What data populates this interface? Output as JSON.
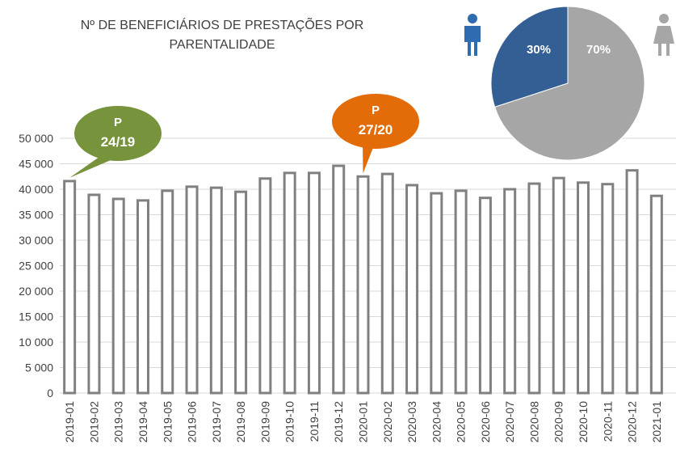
{
  "chart_data": [
    {
      "type": "bar",
      "title": "Nº DE BENEFICIÁRIOS DE PRESTAÇÕES POR PARENTALIDADE",
      "categories": [
        "2019-01",
        "2019-02",
        "2019-03",
        "2019-04",
        "2019-05",
        "2019-06",
        "2019-07",
        "2019-08",
        "2019-09",
        "2019-10",
        "2019-11",
        "2019-12",
        "2020-01",
        "2020-02",
        "2020-03",
        "2020-04",
        "2020-05",
        "2020-06",
        "2020-07",
        "2020-08",
        "2020-09",
        "2020-10",
        "2020-11",
        "2020-12",
        "2021-01"
      ],
      "values": [
        41600,
        38900,
        38100,
        37800,
        39700,
        40500,
        40300,
        39500,
        42100,
        43200,
        43200,
        44600,
        42500,
        43000,
        40800,
        39200,
        39700,
        38300,
        40000,
        41100,
        42200,
        41300,
        41000,
        43700,
        38700
      ],
      "color": "#808080",
      "ylim": [
        0,
        50000
      ],
      "yticks": [
        0,
        {
          "value": 5000,
          "label": "5 000"
        },
        {
          "value": 10000,
          "label": "10 000"
        },
        {
          "value": 15000,
          "label": "15 000"
        },
        {
          "value": 20000,
          "label": "20 000"
        },
        {
          "value": 25000,
          "label": "25 000"
        },
        {
          "value": 30000,
          "label": "30 000"
        },
        {
          "value": 35000,
          "label": "35 000"
        },
        {
          "value": 40000,
          "label": "40 000"
        },
        {
          "value": 45000,
          "label": "45 000"
        },
        {
          "value": 50000,
          "label": "50 000"
        }
      ],
      "grid": true,
      "annotations": [
        {
          "label": "P",
          "text": "24/19",
          "color": "#77933c"
        },
        {
          "label": "P",
          "text": "27/20",
          "color": "#e36c09"
        }
      ]
    },
    {
      "type": "pie",
      "values": [
        30,
        70
      ],
      "value_labels": [
        "30%",
        "70%"
      ],
      "colors": [
        "#335f94",
        "#a6a6a6"
      ]
    }
  ]
}
